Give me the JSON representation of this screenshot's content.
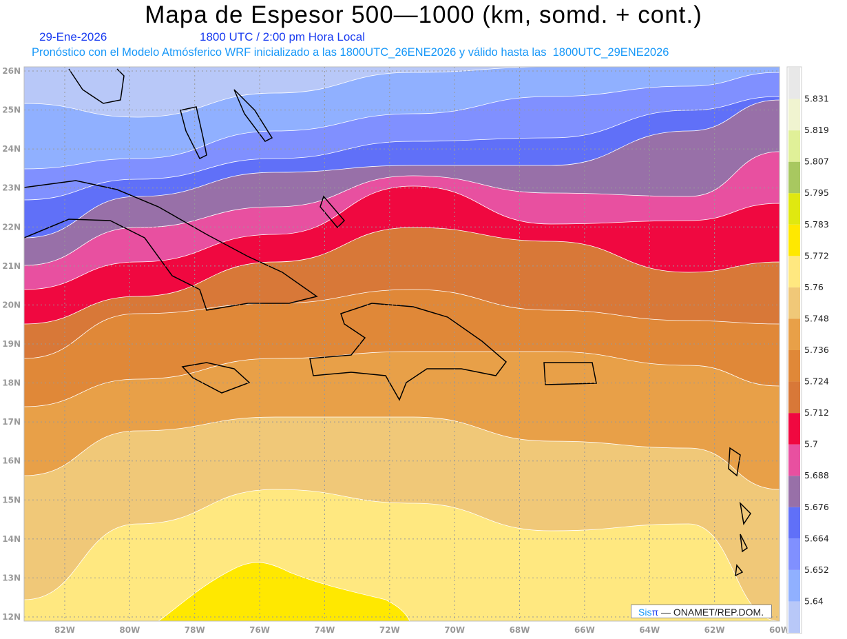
{
  "header": {
    "title": "Mapa de Espesor 500—1000 (km, somd. + cont.)",
    "date": "29-Ene-2026",
    "time": "1800 UTC / 2:00 pm Hora Local",
    "subtitle": "Pronóstico con el Modelo Atmósferico WRF inicializado a las 1800UTC_26ENE2026 y válido hasta las  1800UTC_29ENE2026"
  },
  "credit": {
    "brand_a": "Sis",
    "brand_b": "π",
    "rest": " —  ONAMET/REP.DOM."
  },
  "chart_data": {
    "type": "heatmap",
    "title": "Mapa de Espesor 500-1000 (km, somd. + cont.)",
    "lat_ticks": [
      "12N",
      "13N",
      "14N",
      "15N",
      "16N",
      "17N",
      "18N",
      "19N",
      "20N",
      "21N",
      "22N",
      "23N",
      "24N",
      "25N",
      "26N"
    ],
    "lon_ticks": [
      "82W",
      "80W",
      "78W",
      "76W",
      "74W",
      "72W",
      "70W",
      "68W",
      "66W",
      "64W",
      "62W",
      "60W"
    ],
    "lon_range": [
      -83.25,
      -60
    ],
    "lat_range": [
      11.9,
      26.1
    ],
    "colorbar": {
      "levels": [
        "5.64",
        "5.652",
        "5.664",
        "5.676",
        "5.688",
        "5.7",
        "5.712",
        "5.724",
        "5.736",
        "5.748",
        "5.76",
        "5.772",
        "5.783",
        "5.795",
        "5.807",
        "5.819",
        "5.831"
      ],
      "colors": [
        "#b8c8f8",
        "#90b0ff",
        "#8090ff",
        "#6070f8",
        "#9870a8",
        "#e850a0",
        "#f00840",
        "#d87838",
        "#e08838",
        "#e8a048",
        "#f0c878",
        "#ffe880",
        "#ffe800",
        "#e0e810",
        "#a8c860",
        "#e0f098",
        "#f0f4d0",
        "#e8e8e8"
      ]
    }
  }
}
